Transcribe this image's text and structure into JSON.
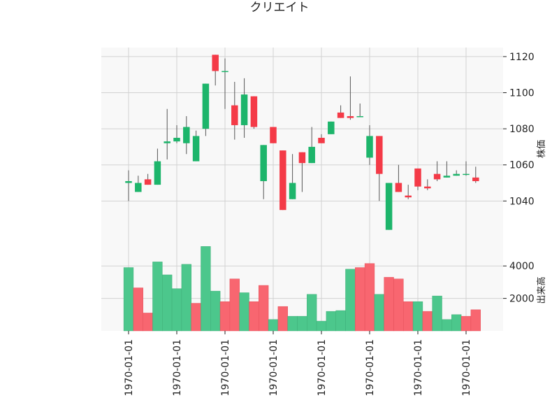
{
  "chart_data": {
    "type": "candlestick",
    "title": "クリエイト",
    "price_axis": {
      "label": "株価",
      "ylim": [
        1013,
        1125
      ],
      "ticks": [
        1040,
        1060,
        1080,
        1100,
        1120
      ],
      "tick_labels": [
        "1040",
        "1060",
        "1080",
        "1100",
        "1120"
      ]
    },
    "volume_axis": {
      "label": "出来高",
      "ylim": [
        0,
        5000
      ],
      "ticks": [
        2000,
        4000
      ],
      "tick_labels": [
        "2000",
        "4000"
      ]
    },
    "x_axis": {
      "tick_labels": [
        "1970-01-01",
        "1970-01-01",
        "1970-01-01",
        "1970-01-01",
        "1970-01-01",
        "1970-01-01",
        "1970-01-01",
        "1970-01-01"
      ],
      "tick_positions": [
        0,
        5,
        10,
        15,
        20,
        25,
        30,
        35
      ]
    },
    "colors": {
      "up": "#1db56b",
      "down": "#f43a47",
      "up_volume": "#4cc78c",
      "down_volume": "#f86670",
      "panel_bg": "#f8f8f8",
      "grid": "#d2d2d2"
    },
    "grid": true,
    "candles": [
      {
        "open": 1050,
        "high": 1057,
        "low": 1040,
        "close": 1051
      },
      {
        "open": 1045,
        "high": 1054,
        "low": 1045,
        "close": 1050
      },
      {
        "open": 1052,
        "high": 1055,
        "low": 1049,
        "close": 1049
      },
      {
        "open": 1049,
        "high": 1069,
        "low": 1049,
        "close": 1062
      },
      {
        "open": 1072,
        "high": 1091,
        "low": 1063,
        "close": 1073
      },
      {
        "open": 1073,
        "high": 1082,
        "low": 1072,
        "close": 1075
      },
      {
        "open": 1072,
        "high": 1087,
        "low": 1066,
        "close": 1081
      },
      {
        "open": 1062,
        "high": 1079,
        "low": 1062,
        "close": 1076
      },
      {
        "open": 1080,
        "high": 1105,
        "low": 1076,
        "close": 1105
      },
      {
        "open": 1121,
        "high": 1121,
        "low": 1104,
        "close": 1112
      },
      {
        "open": 1112,
        "high": 1119,
        "low": 1091,
        "close": 1112
      },
      {
        "open": 1093,
        "high": 1106,
        "low": 1074,
        "close": 1082
      },
      {
        "open": 1082,
        "high": 1108,
        "low": 1075,
        "close": 1099
      },
      {
        "open": 1098,
        "high": 1098,
        "low": 1080,
        "close": 1081
      },
      {
        "open": 1051,
        "high": 1071,
        "low": 1041,
        "close": 1071
      },
      {
        "open": 1081,
        "high": 1081,
        "low": 1072,
        "close": 1072
      },
      {
        "open": 1068,
        "high": 1068,
        "low": 1035,
        "close": 1035
      },
      {
        "open": 1041,
        "high": 1066,
        "low": 1041,
        "close": 1050
      },
      {
        "open": 1067,
        "high": 1067,
        "low": 1045,
        "close": 1061
      },
      {
        "open": 1061,
        "high": 1081,
        "low": 1061,
        "close": 1070
      },
      {
        "open": 1075,
        "high": 1077,
        "low": 1072,
        "close": 1072
      },
      {
        "open": 1077,
        "high": 1084,
        "low": 1077,
        "close": 1084
      },
      {
        "open": 1089,
        "high": 1093,
        "low": 1086,
        "close": 1086
      },
      {
        "open": 1087,
        "high": 1109,
        "low": 1085,
        "close": 1086
      },
      {
        "open": 1087,
        "high": 1094,
        "low": 1087,
        "close": 1087
      },
      {
        "open": 1064,
        "high": 1082,
        "low": 1060,
        "close": 1076
      },
      {
        "open": 1076,
        "high": 1076,
        "low": 1040,
        "close": 1055
      },
      {
        "open": 1024,
        "high": 1050,
        "low": 1024,
        "close": 1050
      },
      {
        "open": 1050,
        "high": 1060,
        "low": 1045,
        "close": 1045
      },
      {
        "open": 1043,
        "high": 1049,
        "low": 1041,
        "close": 1042
      },
      {
        "open": 1058,
        "high": 1058,
        "low": 1046,
        "close": 1048
      },
      {
        "open": 1048,
        "high": 1052,
        "low": 1046,
        "close": 1047
      },
      {
        "open": 1055,
        "high": 1062,
        "low": 1051,
        "close": 1052
      },
      {
        "open": 1053,
        "high": 1062,
        "low": 1053,
        "close": 1054
      },
      {
        "open": 1054,
        "high": 1057,
        "low": 1054,
        "close": 1055
      },
      {
        "open": 1055,
        "high": 1062,
        "low": 1054,
        "close": 1055
      },
      {
        "open": 1053,
        "high": 1059,
        "low": 1050,
        "close": 1051
      }
    ],
    "volume": [
      3900,
      2650,
      1100,
      4250,
      3450,
      2600,
      4100,
      1700,
      5200,
      2450,
      1800,
      3200,
      2350,
      1800,
      2800,
      700,
      1500,
      900,
      900,
      2250,
      600,
      1200,
      1250,
      3800,
      3900,
      4150,
      2250,
      3300,
      3200,
      1800,
      1800,
      1200,
      2150,
      700,
      1000,
      900,
      1300
    ],
    "volume_direction": [
      "up",
      "down",
      "down",
      "up",
      "up",
      "up",
      "up",
      "down",
      "up",
      "up",
      "down",
      "down",
      "up",
      "down",
      "down",
      "up",
      "down",
      "up",
      "up",
      "up",
      "up",
      "up",
      "up",
      "up",
      "down",
      "down",
      "up",
      "down",
      "down",
      "down",
      "up",
      "down",
      "up",
      "up",
      "up",
      "down",
      "down"
    ]
  }
}
